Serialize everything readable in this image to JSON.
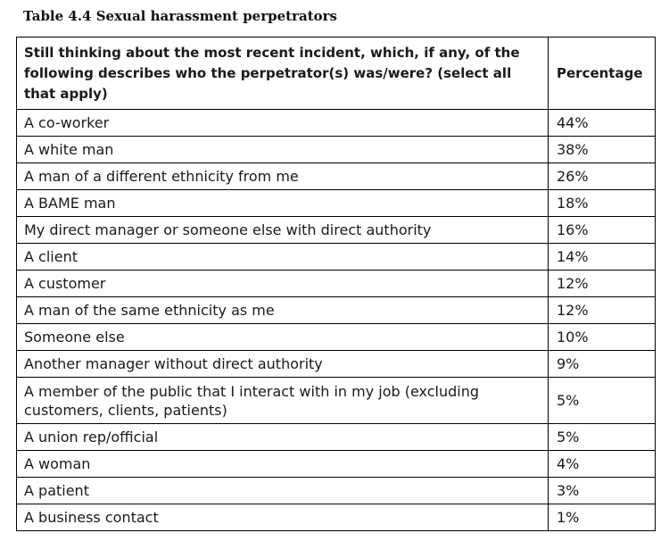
{
  "caption": "Table 4.4 Sexual harassment perpetrators",
  "table": {
    "headers": [
      "Still thinking about the most recent incident, which, if any, of the following describes who the perpetrator(s) was/were? (select all that apply)",
      "Percentage"
    ],
    "rows": [
      [
        "A co-worker",
        "44%"
      ],
      [
        "A white man",
        "38%"
      ],
      [
        "A man of a different ethnicity from me",
        "26%"
      ],
      [
        "A BAME man",
        "18%"
      ],
      [
        "My direct manager or someone else with direct authority",
        "16%"
      ],
      [
        "A client",
        "14%"
      ],
      [
        "A customer",
        "12%"
      ],
      [
        "A man of the same ethnicity as me",
        "12%"
      ],
      [
        "Someone else",
        "10%"
      ],
      [
        "Another manager without direct authority",
        "9%"
      ],
      [
        "A member of the public that I interact with in my job (excluding customers, clients, patients)",
        "5%"
      ],
      [
        "A union rep/official",
        "5%"
      ],
      [
        "A woman",
        "4%"
      ],
      [
        "A patient",
        "3%"
      ],
      [
        "A business contact",
        "1%"
      ]
    ]
  }
}
